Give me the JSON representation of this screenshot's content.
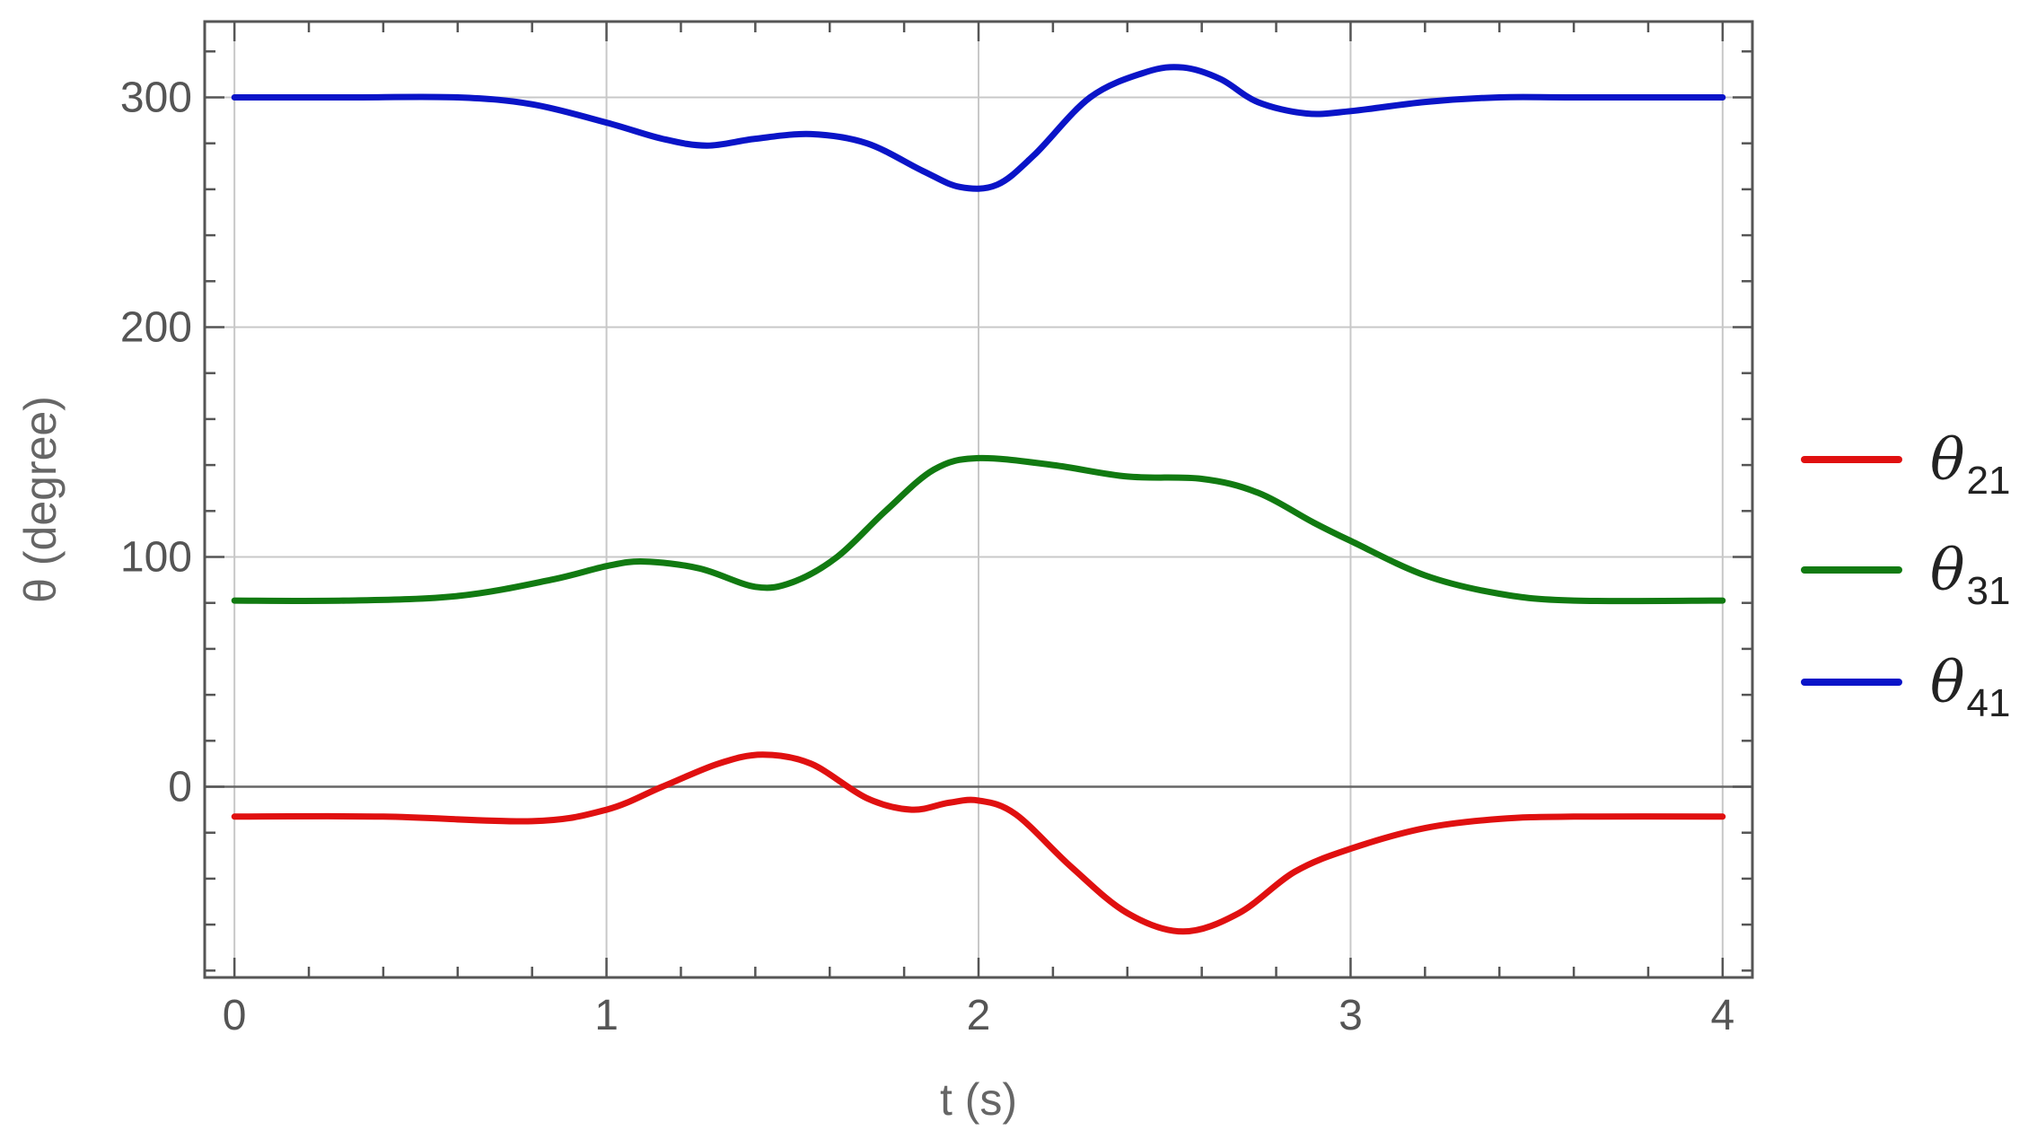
{
  "chart_data": {
    "type": "line",
    "title": "",
    "xlabel": "t (s)",
    "ylabel": "θ (degree)",
    "xlim": [
      -0.08,
      4.08
    ],
    "ylim": [
      -83,
      333
    ],
    "x_ticks": [
      0,
      1,
      2,
      3,
      4
    ],
    "y_ticks": [
      0,
      100,
      200,
      300
    ],
    "grid": true,
    "legend": "right",
    "series": [
      {
        "name": "θ21",
        "base": "θ",
        "sub": "21",
        "color": "#e01010",
        "points": [
          [
            0,
            -13
          ],
          [
            0.4,
            -13
          ],
          [
            0.8,
            -15
          ],
          [
            1.0,
            -10
          ],
          [
            1.15,
            0
          ],
          [
            1.3,
            10
          ],
          [
            1.42,
            14
          ],
          [
            1.55,
            10
          ],
          [
            1.7,
            -5
          ],
          [
            1.82,
            -10
          ],
          [
            1.92,
            -7
          ],
          [
            2.0,
            -6
          ],
          [
            2.1,
            -12
          ],
          [
            2.25,
            -35
          ],
          [
            2.4,
            -55
          ],
          [
            2.55,
            -63
          ],
          [
            2.7,
            -55
          ],
          [
            2.85,
            -37
          ],
          [
            3.0,
            -27
          ],
          [
            3.2,
            -18
          ],
          [
            3.4,
            -14
          ],
          [
            3.6,
            -13
          ],
          [
            4.0,
            -13
          ]
        ]
      },
      {
        "name": "θ31",
        "base": "θ",
        "sub": "31",
        "color": "#117a11",
        "points": [
          [
            0,
            81
          ],
          [
            0.3,
            81
          ],
          [
            0.6,
            83
          ],
          [
            0.85,
            90
          ],
          [
            1.0,
            96
          ],
          [
            1.1,
            98
          ],
          [
            1.25,
            95
          ],
          [
            1.4,
            87
          ],
          [
            1.5,
            89
          ],
          [
            1.62,
            100
          ],
          [
            1.75,
            120
          ],
          [
            1.88,
            138
          ],
          [
            2.0,
            143
          ],
          [
            2.2,
            140
          ],
          [
            2.4,
            135
          ],
          [
            2.6,
            134
          ],
          [
            2.75,
            128
          ],
          [
            2.9,
            115
          ],
          [
            3.0,
            107
          ],
          [
            3.2,
            92
          ],
          [
            3.4,
            84
          ],
          [
            3.6,
            81
          ],
          [
            4.0,
            81
          ]
        ]
      },
      {
        "name": "θ41",
        "base": "θ",
        "sub": "41",
        "color": "#0a14c8",
        "points": [
          [
            0,
            300
          ],
          [
            0.3,
            300
          ],
          [
            0.6,
            300
          ],
          [
            0.8,
            297
          ],
          [
            1.0,
            289
          ],
          [
            1.15,
            282
          ],
          [
            1.27,
            279
          ],
          [
            1.4,
            282
          ],
          [
            1.55,
            284
          ],
          [
            1.7,
            280
          ],
          [
            1.85,
            268
          ],
          [
            1.95,
            261
          ],
          [
            2.05,
            262
          ],
          [
            2.15,
            275
          ],
          [
            2.3,
            300
          ],
          [
            2.45,
            311
          ],
          [
            2.55,
            313
          ],
          [
            2.65,
            308
          ],
          [
            2.75,
            298
          ],
          [
            2.88,
            293
          ],
          [
            3.0,
            294
          ],
          [
            3.2,
            298
          ],
          [
            3.4,
            300
          ],
          [
            3.6,
            300
          ],
          [
            4.0,
            300
          ]
        ]
      }
    ]
  }
}
